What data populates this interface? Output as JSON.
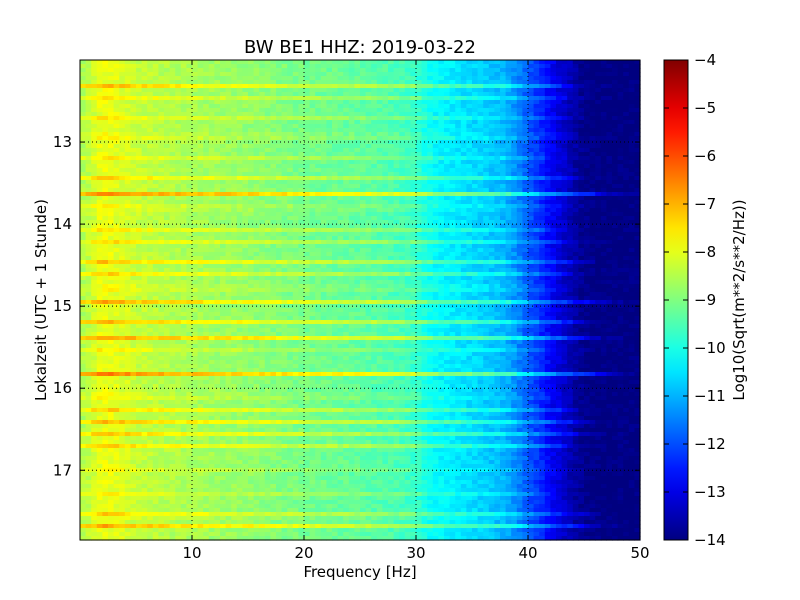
{
  "chart_data": {
    "type": "heatmap",
    "title": "BW BE1 HHZ: 2019-03-22",
    "xlabel": "Frequency [Hz]",
    "ylabel": "Lokalzeit (UTC + 1 Stunde)",
    "xlim": [
      0,
      50
    ],
    "ylim": [
      17.85,
      12.0
    ],
    "y_axis_inverted": true,
    "x_ticks": [
      10,
      20,
      30,
      40,
      50
    ],
    "x_tick_labels": [
      "10",
      "20",
      "30",
      "40",
      "50"
    ],
    "y_ticks": [
      13,
      14,
      15,
      16,
      17
    ],
    "y_tick_labels": [
      "13",
      "14",
      "15",
      "16",
      "17"
    ],
    "grid": true,
    "grid_style": "dotted",
    "colorbar": {
      "label": "Log10(Sqrt(m**2/s**2/Hz))",
      "colormap": "jet",
      "range": [
        -14,
        -4
      ],
      "ticks": [
        -4,
        -5,
        -6,
        -7,
        -8,
        -9,
        -10,
        -11,
        -12,
        -13,
        -14
      ],
      "tick_labels": [
        "−4",
        "−5",
        "−6",
        "−7",
        "−8",
        "−9",
        "−10",
        "−11",
        "−12",
        "−13",
        "−14"
      ]
    },
    "spectrum_profile": {
      "frequency_hz": [
        0,
        1,
        2,
        3,
        5,
        8,
        10,
        15,
        20,
        25,
        28,
        30,
        31,
        32,
        34,
        36,
        38,
        39,
        40,
        41,
        42,
        43,
        44,
        45,
        46,
        47,
        50
      ],
      "log_amplitude": [
        -8.6,
        -8.3,
        -7.9,
        -8.0,
        -8.3,
        -8.5,
        -8.6,
        -8.8,
        -9.1,
        -9.3,
        -9.5,
        -9.7,
        -10.1,
        -10.3,
        -10.5,
        -10.7,
        -11.0,
        -11.4,
        -11.9,
        -12.3,
        -12.8,
        -13.2,
        -13.6,
        -13.9,
        -14.0,
        -14.0,
        -14.0
      ]
    },
    "event_bands": [
      {
        "time": 12.32,
        "strength": 0.6,
        "fmax": 43
      },
      {
        "time": 12.45,
        "strength": 0.5,
        "fmax": 43
      },
      {
        "time": 12.72,
        "strength": 0.4,
        "fmax": 42
      },
      {
        "time": 12.93,
        "strength": 0.5,
        "fmax": 43
      },
      {
        "time": 13.2,
        "strength": 0.3,
        "fmax": 41
      },
      {
        "time": 13.45,
        "strength": 0.6,
        "fmax": 44
      },
      {
        "time": 13.63,
        "strength": 1.0,
        "fmax": 46
      },
      {
        "time": 13.8,
        "strength": 0.5,
        "fmax": 43
      },
      {
        "time": 14.08,
        "strength": 0.4,
        "fmax": 42
      },
      {
        "time": 14.22,
        "strength": 0.4,
        "fmax": 43
      },
      {
        "time": 14.45,
        "strength": 0.7,
        "fmax": 44
      },
      {
        "time": 14.6,
        "strength": 0.5,
        "fmax": 43
      },
      {
        "time": 14.78,
        "strength": 0.5,
        "fmax": 43
      },
      {
        "time": 14.96,
        "strength": 0.9,
        "fmax": 46
      },
      {
        "time": 15.2,
        "strength": 0.7,
        "fmax": 44
      },
      {
        "time": 15.38,
        "strength": 0.9,
        "fmax": 45
      },
      {
        "time": 15.55,
        "strength": 0.4,
        "fmax": 42
      },
      {
        "time": 15.83,
        "strength": 1.0,
        "fmax": 46
      },
      {
        "time": 16.1,
        "strength": 0.4,
        "fmax": 42
      },
      {
        "time": 16.27,
        "strength": 0.5,
        "fmax": 43
      },
      {
        "time": 16.4,
        "strength": 0.8,
        "fmax": 44
      },
      {
        "time": 16.55,
        "strength": 0.6,
        "fmax": 44
      },
      {
        "time": 16.7,
        "strength": 0.5,
        "fmax": 43
      },
      {
        "time": 16.98,
        "strength": 0.3,
        "fmax": 41
      },
      {
        "time": 17.3,
        "strength": 0.3,
        "fmax": 41
      },
      {
        "time": 17.55,
        "strength": 0.8,
        "fmax": 45
      },
      {
        "time": 17.68,
        "strength": 0.7,
        "fmax": 45
      }
    ]
  }
}
